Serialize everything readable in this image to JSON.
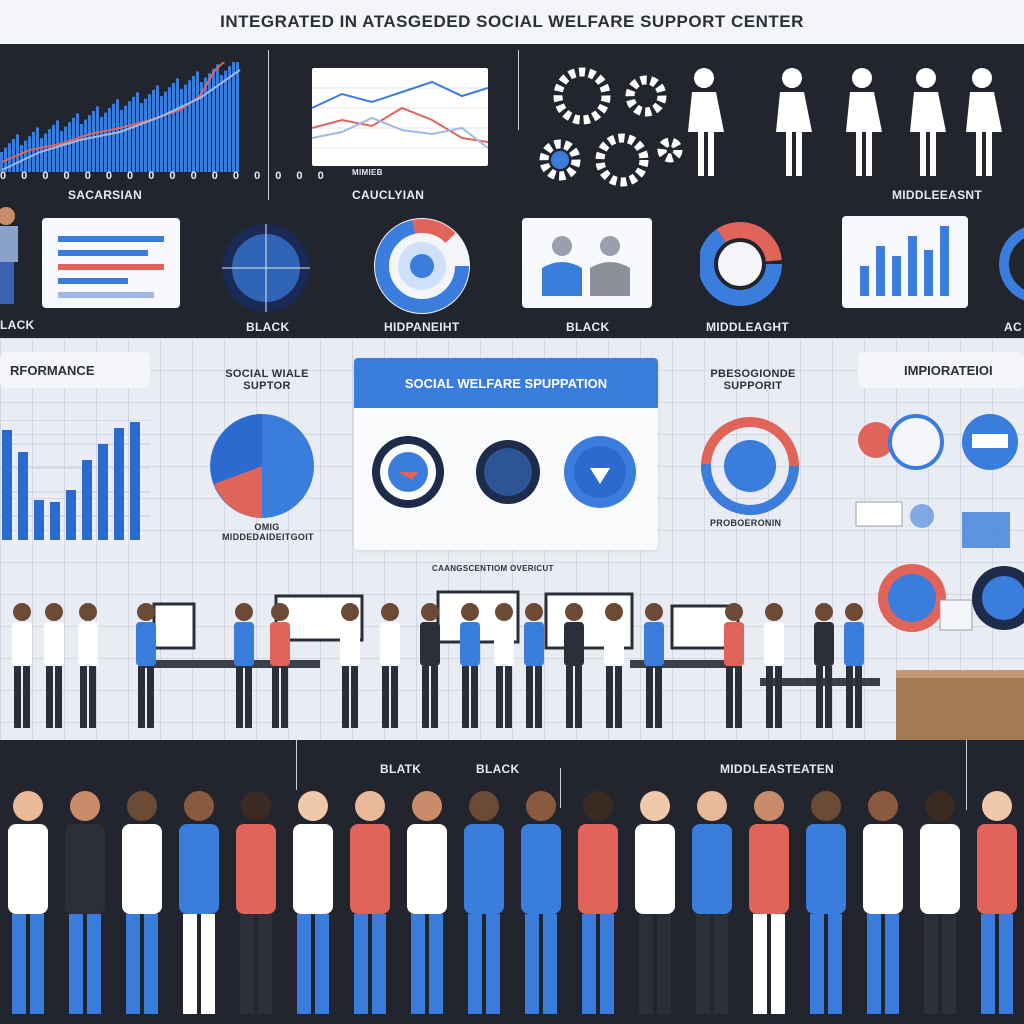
{
  "title": "INTEGRATED IN ATASGEDED SOCIAL WELFARE SUPPORT CENTER",
  "top_labels": {
    "l1": "SACARSIAN",
    "l2": "CAUCLYIAN",
    "l3": "MIDDLEEASNT",
    "l4": "LACK",
    "l5": "BLACK",
    "l6": "HIDPANEIHT",
    "l7": "BLACK",
    "l8": "MIDDLEAGHT",
    "l9": "AC",
    "ticks": "0 0 0 0 0 0 0 0 0 0 0 0 0 0 0 0",
    "mini_axis": "MIMIEB"
  },
  "mid_labels": {
    "performance": "RFORMANCE",
    "social_support": "SOCIAL WIALE SUPTOR",
    "panel_title": "SOCIAL WELFARE SPUPPATION",
    "professional": "PBESOGIONDE SUPPORIT",
    "improvement": "IMPIORATEIOI",
    "pie_caption": "OMIG MIDDEDAIDEITGOIT",
    "prof_caption": "PROBOERONIN",
    "panel_caption": "CAANGSCENTIOM OVERICUT"
  },
  "bottom_labels": {
    "b1": "BLATK",
    "b2": "BLACK",
    "b3": "MIDDLEASTEATEN"
  },
  "colors": {
    "blue": "#3b7ddd",
    "red": "#e0645a",
    "dark": "#22252e",
    "navy": "#1f2b4a"
  }
}
